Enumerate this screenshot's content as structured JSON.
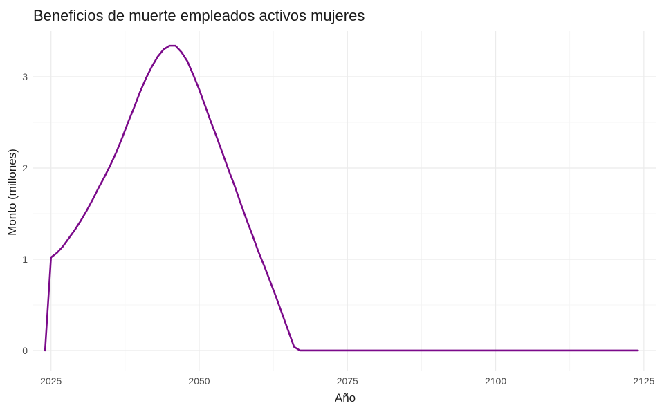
{
  "chart_data": {
    "type": "line",
    "title": "Beneficios de muerte empleados activos mujeres",
    "xlabel": "Año",
    "ylabel": "Monto (millones)",
    "xlim": [
      2022,
      2127
    ],
    "ylim": [
      -0.22,
      3.5
    ],
    "x_ticks": [
      2025,
      2050,
      2075,
      2100,
      2125
    ],
    "y_ticks": [
      0,
      1,
      2,
      3
    ],
    "grid": true,
    "legend": "none",
    "color": "#7b0a8a",
    "series": [
      {
        "x": [
          2024,
          2025,
          2026,
          2027,
          2028,
          2029,
          2030,
          2031,
          2032,
          2033,
          2034,
          2035,
          2036,
          2037,
          2038,
          2039,
          2040,
          2041,
          2042,
          2043,
          2044,
          2045,
          2046,
          2047,
          2048,
          2049,
          2050,
          2051,
          2052,
          2053,
          2054,
          2055,
          2056,
          2057,
          2058,
          2059,
          2060,
          2061,
          2062,
          2063,
          2064,
          2065,
          2066,
          2067,
          2068,
          2069,
          2070,
          2080,
          2090,
          2100,
          2110,
          2120,
          2124
        ],
        "values": [
          0.0,
          1.02,
          1.07,
          1.14,
          1.23,
          1.32,
          1.42,
          1.53,
          1.65,
          1.78,
          1.9,
          2.03,
          2.17,
          2.33,
          2.5,
          2.66,
          2.83,
          2.98,
          3.11,
          3.22,
          3.3,
          3.34,
          3.34,
          3.27,
          3.17,
          3.02,
          2.86,
          2.68,
          2.5,
          2.33,
          2.15,
          1.97,
          1.8,
          1.61,
          1.43,
          1.26,
          1.08,
          0.92,
          0.75,
          0.58,
          0.4,
          0.22,
          0.04,
          0.0,
          0.0,
          0.0,
          0.0,
          0.0,
          0.0,
          0.0,
          0.0,
          0.0,
          0.0
        ]
      }
    ]
  }
}
